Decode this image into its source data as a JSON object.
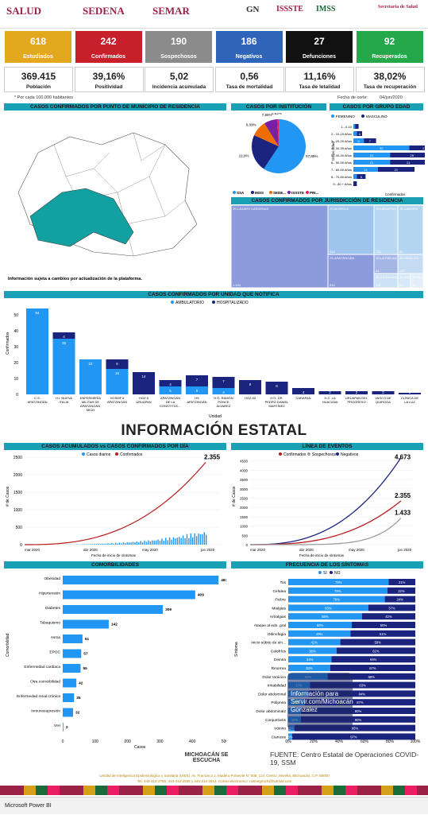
{
  "header": {
    "logos": [
      "SALUD",
      "SEDENA",
      "SEMAR",
      "GN",
      "ISSSTE",
      "IMSS",
      "Secretaría de Salud"
    ]
  },
  "cards": [
    {
      "value": "618",
      "label": "Estudiados",
      "color": "#e3a81e"
    },
    {
      "value": "242",
      "label": "Confirmados",
      "color": "#c8202a"
    },
    {
      "value": "190",
      "label": "Sospechosos",
      "color": "#8b8b8b"
    },
    {
      "value": "186",
      "label": "Negativos",
      "color": "#2f64b8"
    },
    {
      "value": "27",
      "label": "Defunciones",
      "color": "#111111"
    },
    {
      "value": "92",
      "label": "Recuperados",
      "color": "#24a84a"
    }
  ],
  "stats": [
    {
      "value": "369.415",
      "label": "Población"
    },
    {
      "value": "39,16%",
      "label": "Positividad"
    },
    {
      "value": "5,02",
      "label": "Incidencia acumulada"
    },
    {
      "value": "0,56",
      "label": "Tasa de mortalidad"
    },
    {
      "value": "11,16%",
      "label": "Tasa de letalidad"
    },
    {
      "value": "38,02%",
      "label": "Tasa de recuperación"
    }
  ],
  "stats_note": "* Por cada 100.000 habitantes",
  "cut_date_label": "Fecha de corte:",
  "cut_date": "04/jun/2020",
  "sections": {
    "municipio": "CASOS CONFIRMADOS POR PUNTO DE MUNICIPIO DE RESIDENCIA",
    "institucion": "CASOS POR INSTITUCIÓN",
    "grupo_edad": "CASOS POR GRUPO EDAD",
    "jurisdiccion": "CASOS CONFIRMADOS POR JURISDICCIÓN DE RESIDENCIA",
    "unidad": "CASOS CONFIRMADOS POR UNIDAD QUE NOTIFICA",
    "acumulados": "CASOS ACUMULADOS vs CASOS CONFIRMADOS POR DÍA",
    "eventos": "LÍNEA DE EVENTOS",
    "comorbilidades": "COMORBILIDADES",
    "sintomas": "FRECUENCIA DE LOS SÍNTOMAS"
  },
  "map_note": "Información sujeta a cambios por actualización de la plataforma.",
  "big_title": "INFORMACIÓN ESTATAL",
  "footer": {
    "source": "FUENTE: Centro Estatal de Operaciones COVID-19, SSM",
    "small": "Unidad de Inteligencia Epidemiológica y Sanitaria (UIES). Av. Francisco J. Madero Poniente N° 508, Col. Centro, Morelia, Michoacán, C.P. 58000",
    "phones": "Tel. 443-312-2756, 443-312-2556 y 443-312-2813, Correo electrónico: notinegmich@hotmail.com",
    "logo_text": "MICHOACÁN SE ESCUCHA",
    "overlay": "Información para Servir.com/Michoacán Gonzalez"
  },
  "taskbar": "Microsoft Power BI",
  "colors": {
    "teal": "#1aa0b4",
    "light_blue": "#2196f3",
    "navy": "#1a237e",
    "red": "#b71c1c",
    "grey": "#9e9e9e"
  },
  "chart_data": [
    {
      "type": "pie",
      "title": "CASOS POR INSTITUCIÓN",
      "labels": [
        "SSA",
        "IMSS",
        "SEDE...",
        "ISSSTE",
        "PRI..."
      ],
      "values": [
        57.85,
        21.9,
        9.09,
        7.85,
        0.83
      ],
      "value_labels": [
        "57,85%",
        "21,9%",
        "9,09%",
        "7,85%",
        "0,83%"
      ],
      "colors": [
        "#2196f3",
        "#1a237e",
        "#ef6c00",
        "#7b1fa2",
        "#e91e63"
      ]
    },
    {
      "type": "bar",
      "title": "CASOS POR GRUPO EDAD",
      "legend": [
        "FEMENINO",
        "MASCULINO"
      ],
      "categories": [
        "1.- 0-10",
        "2.- 10-19 Años",
        "3.- 20-29 Años",
        "4.- 30-39 Años",
        "5.- 40-49 Años",
        "6.- 50-59 Años",
        "7.- 60-69 Años",
        "8.- 70-80 Años",
        "9.- 80 + Años"
      ],
      "series": [
        {
          "name": "FEMENINO",
          "values": [
            1,
            2,
            6,
            32,
            21,
            21,
            14,
            2,
            0
          ]
        },
        {
          "name": "MASCULINO",
          "values": [
            2,
            3,
            7,
            17,
            25,
            21,
            21,
            5,
            2
          ]
        }
      ],
      "xlabel": "Confirmados",
      "ylabel": "Grupo edad"
    },
    {
      "type": "treemap",
      "title": "CASOS CONFIRMADOS POR JURISDICCIÓN DE RESIDENCIA",
      "labels": [
        "JS-LÁZARO CÁRDENAS",
        "JS-MORELIA",
        "JS-APATZINGÁN",
        "JS-URUAPAN",
        "JS-ZAMORA",
        "JS-LA PIEDAD",
        "JS-ZITÁCUARO",
        "JS-HIDALGO",
        "JS-JIQUILPAN",
        "JS-SAHUAYO"
      ],
      "values": [
        "1.100",
        "334",
        "242",
        "130",
        "82",
        "41",
        "131",
        "130",
        "28",
        "34"
      ]
    },
    {
      "type": "bar",
      "title": "CASOS CONFIRMADOS POR UNIDAD QUE NOTIFICA",
      "legend": [
        "AMBULATORIO",
        "HOSPITALIZADO"
      ],
      "categories": [
        "C.S. APATZINGÁN",
        "H.I. NUEVA ITALIA",
        "ENFERMERÍA MILITAR DE APATZINGÁN, MICH",
        "HGSMF 8 APATZINGÁN",
        "HGZ 8 URUAPAN",
        "APATZINGÁN DE LA CONSTITUC...",
        "HS APATZINGÁN",
        "H.G. RAMÓN PONCE ÁLVAREZ",
        "HGZ 83",
        "H.G. DR. PEDRO DANIEL MARTÍNEZ",
        "CARAPAN",
        "H.C. LA HUACANA",
        "URUAPAN DEL PROGRESO",
        "VASCO DE QUIROGA",
        "CLÍNICA DE LA LUZ"
      ],
      "series": [
        {
          "name": "AMBULATORIO",
          "values": [
            54,
            35,
            22,
            16,
            0,
            5,
            5,
            4,
            0,
            0,
            0,
            0,
            0,
            0,
            0
          ]
        },
        {
          "name": "HOSPITALIZADO",
          "values": [
            0,
            4,
            0,
            6,
            14,
            4,
            7,
            7,
            9,
            8,
            4,
            2,
            2,
            2,
            1
          ]
        }
      ],
      "ylabel": "Confirmados",
      "xlabel": "Unidad",
      "ylim": [
        0,
        60
      ]
    },
    {
      "type": "bar+line",
      "title": "CASOS ACUMULADOS vs CASOS CONFIRMADOS POR DÍA",
      "legend": [
        "Casos diarios",
        "Confirmados"
      ],
      "x_ticks": [
        "mar 2020",
        "abr 2020",
        "may 2020",
        "jun 2020"
      ],
      "last_value": "2.355",
      "ylabel": "# de Casos",
      "xlabel": "Fecha de inicio de síntomas",
      "y_ticks": [
        0,
        500,
        1000,
        1500,
        2000,
        2500
      ]
    },
    {
      "type": "line",
      "title": "LÍNEA DE EVENTOS",
      "legend": [
        "Confirmados",
        "Sospechosos",
        "Negativos"
      ],
      "end_values": [
        "4.673",
        "2.355",
        "1.433"
      ],
      "x_ticks": [
        "mar 2020",
        "abr 2020",
        "may 2020",
        "jun 2020"
      ],
      "y_ticks": [
        0,
        500,
        1000,
        1500,
        2000,
        2500,
        3000,
        3500,
        4000,
        4500
      ],
      "ylabel": "# de Casos",
      "xlabel": "Fecha de inicio de síntomas"
    },
    {
      "type": "bar",
      "title": "COMORBILIDADES",
      "categories": [
        "Obesidad",
        "Hipertensión",
        "Diabetes",
        "Tabaquismo",
        "Asma",
        "EPOC",
        "Enfermedad cardiaca",
        "Otra comorbilidad",
        "Enfermedad renal crónica",
        "Inmunosupresión",
        "VIH"
      ],
      "values": [
        481,
        409,
        309,
        142,
        61,
        57,
        55,
        42,
        35,
        32,
        2
      ],
      "xlabel": "Casos",
      "ylabel": "Comorbilidad",
      "xlim": [
        0,
        500
      ]
    },
    {
      "type": "bar",
      "title": "FRECUENCIA DE LOS SÍNTOMAS",
      "legend": [
        "SI",
        "NO"
      ],
      "categories": [
        "Tos",
        "Cefalea",
        "Fiebre",
        "Mialgias",
        "Artralgias",
        "Ataque al edo. gral",
        "Odinofagia",
        "Inicio súbito de sín...",
        "Calofríos",
        "Disnea",
        "Rinorrea",
        "Dolor torácico",
        "Irritabilidad",
        "Dolor abdominal",
        "Polipnea",
        "Dolor abdominal2",
        "Conjuntivitis",
        "Vómito",
        "Cianosis"
      ],
      "series": [
        {
          "name": "SI",
          "values": [
            79,
            78,
            76,
            63,
            58,
            50,
            49,
            41,
            38,
            34,
            33,
            31,
            17,
            16,
            13,
            10,
            10,
            5,
            3
          ]
        },
        {
          "name": "NO",
          "values": [
            21,
            22,
            24,
            37,
            42,
            50,
            51,
            59,
            62,
            66,
            67,
            69,
            83,
            84,
            87,
            90,
            90,
            95,
            97
          ]
        }
      ],
      "ylabel": "Síntoma",
      "x_ticks": [
        "0%",
        "20%",
        "40%",
        "60%",
        "80%",
        "100%"
      ]
    }
  ]
}
